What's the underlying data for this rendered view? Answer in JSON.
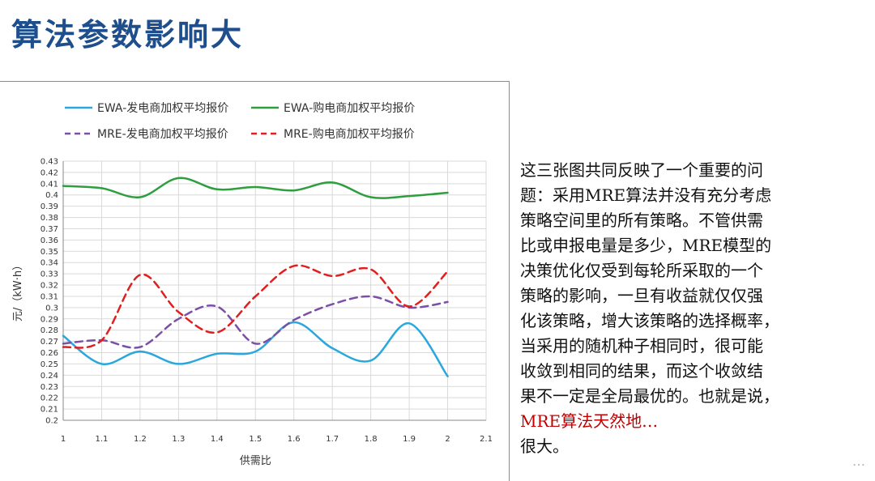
{
  "page": {
    "title": "算法参数影响大"
  },
  "description": {
    "lines": [
      "这三张图共同反映了一个重要的问",
      "题：采用MRE算法并没有充分考虑",
      "策略空间里的所有策略。不管供需",
      "比或申报电量是多少，MRE模型的",
      "决策优化仅受到每轮所采取的一个",
      "策略的影响，一旦有收益就仅仅强",
      "化该策略，增大该策略的选择概率，",
      "当采用的随机种子相同时，很可能",
      "收敛到相同的结果，而这个收敛结",
      "果不一定是全局最优的。也就是说，",
      "MRE算法天然地…",
      "很大。"
    ],
    "red_line_index": 10
  },
  "watermark": "…",
  "colors": {
    "ewa_seller": "#2aa7dc",
    "ewa_buyer": "#2e9e3e",
    "mre_seller": "#7b4fa6",
    "mre_buyer": "#e02020",
    "title": "#1f4e8c",
    "grid": "#d9d9d9"
  },
  "chart_data": {
    "type": "line",
    "xlabel": "供需比",
    "ylabel": "元/（kW·h）",
    "xlim": [
      1,
      2.1
    ],
    "ylim": [
      0.2,
      0.43
    ],
    "x_ticks": [
      "1",
      "1.1",
      "1.2",
      "1.3",
      "1.4",
      "1.5",
      "1.6",
      "1.7",
      "1.8",
      "1.9",
      "2",
      "2.1"
    ],
    "y_ticks": [
      "0.2",
      "0.21",
      "0.22",
      "0.23",
      "0.24",
      "0.25",
      "0.26",
      "0.27",
      "0.28",
      "0.29",
      "0.3",
      "0.31",
      "0.32",
      "0.33",
      "0.34",
      "0.35",
      "0.36",
      "0.37",
      "0.38",
      "0.39",
      "0.4",
      "0.41",
      "0.42",
      "0.43"
    ],
    "grid": true,
    "legend_position": "top",
    "x": [
      1,
      1.1,
      1.2,
      1.3,
      1.4,
      1.5,
      1.6,
      1.7,
      1.8,
      1.9,
      2
    ],
    "series": [
      {
        "name": "EWA-发电商加权平均报价",
        "style": "solid",
        "color": "#2aa7dc",
        "values": [
          0.275,
          0.25,
          0.261,
          0.25,
          0.259,
          0.261,
          0.287,
          0.264,
          0.253,
          0.286,
          0.239
        ]
      },
      {
        "name": "EWA-购电商加权平均报价",
        "style": "solid",
        "color": "#2e9e3e",
        "values": [
          0.408,
          0.406,
          0.398,
          0.415,
          0.405,
          0.407,
          0.404,
          0.411,
          0.398,
          0.399,
          0.402
        ]
      },
      {
        "name": "MRE-发电商加权平均报价",
        "style": "dashed",
        "color": "#7b4fa6",
        "values": [
          0.268,
          0.271,
          0.265,
          0.29,
          0.301,
          0.268,
          0.289,
          0.303,
          0.31,
          0.3,
          0.305
        ]
      },
      {
        "name": "MRE-购电商加权平均报价",
        "style": "dashed",
        "color": "#e02020",
        "values": [
          0.265,
          0.271,
          0.329,
          0.296,
          0.278,
          0.31,
          0.337,
          0.328,
          0.334,
          0.301,
          0.332
        ]
      }
    ]
  }
}
